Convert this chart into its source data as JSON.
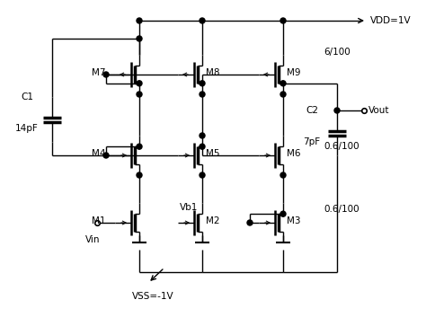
{
  "bg_color": "#ffffff",
  "line_color": "#000000",
  "vdd_label": "VDD=1V",
  "vss_label": "VSS=-1V",
  "vin_label": "Vin",
  "vout_label": "Vout",
  "ratio_top": "6/100",
  "ratio_mid": "0.6/100",
  "ratio_bot": "0.6/100",
  "c1_label": "C1",
  "c1_val": "14pF",
  "c2_label": "C2",
  "c2_val": "7pF",
  "vb1_label": "Vb1",
  "figsize": [
    4.74,
    3.63
  ],
  "dpi": 100
}
